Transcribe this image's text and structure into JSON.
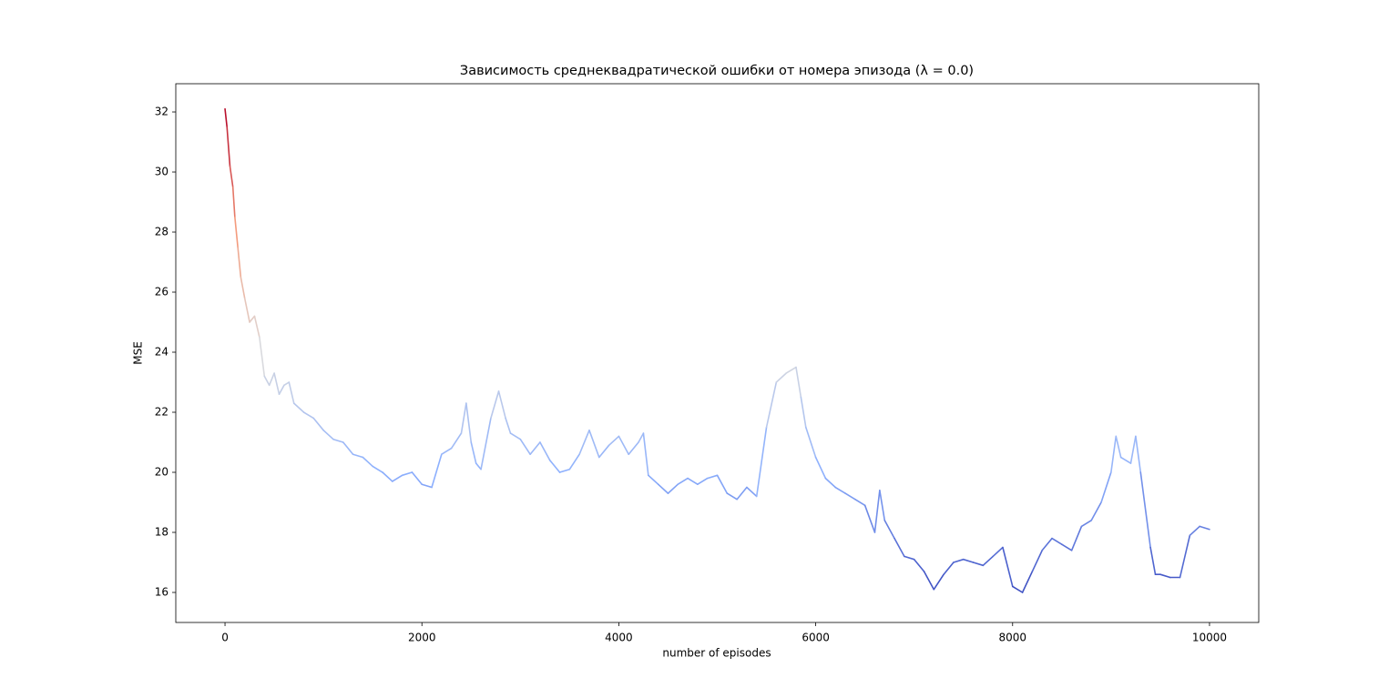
{
  "chart_data": {
    "type": "line",
    "title": "Зависимость среднеквадратической ошибки от номера эпизода (λ = 0.0)",
    "x_label": "number of episodes",
    "y_label": "MSE",
    "xlim": [
      -500,
      10500
    ],
    "ylim": [
      15.0,
      32.94
    ],
    "xticks": [
      0,
      2000,
      4000,
      6000,
      8000,
      10000
    ],
    "yticks": [
      16,
      18,
      20,
      22,
      24,
      26,
      28,
      30,
      32
    ],
    "colormap": [
      "#3b4cc0",
      "#8db0fe",
      "#dddcdc",
      "#f49a7b",
      "#b40426"
    ],
    "x": [
      0,
      20,
      50,
      80,
      100,
      130,
      160,
      200,
      250,
      300,
      350,
      400,
      450,
      500,
      550,
      600,
      650,
      700,
      800,
      900,
      1000,
      1100,
      1200,
      1300,
      1400,
      1500,
      1600,
      1700,
      1800,
      1900,
      2000,
      2100,
      2200,
      2300,
      2400,
      2450,
      2500,
      2550,
      2600,
      2700,
      2780,
      2850,
      2900,
      3000,
      3100,
      3200,
      3300,
      3400,
      3500,
      3600,
      3700,
      3800,
      3900,
      4000,
      4100,
      4200,
      4250,
      4300,
      4400,
      4500,
      4600,
      4700,
      4800,
      4900,
      5000,
      5100,
      5200,
      5300,
      5400,
      5500,
      5600,
      5700,
      5800,
      5850,
      5900,
      6000,
      6100,
      6200,
      6300,
      6400,
      6500,
      6600,
      6650,
      6700,
      6800,
      6900,
      7000,
      7100,
      7200,
      7300,
      7400,
      7500,
      7600,
      7700,
      7800,
      7900,
      8000,
      8100,
      8200,
      8300,
      8400,
      8500,
      8600,
      8700,
      8800,
      8900,
      9000,
      9050,
      9100,
      9200,
      9250,
      9300,
      9400,
      9450,
      9500,
      9600,
      9700,
      9800,
      9900,
      10000
    ],
    "series": [
      {
        "values": [
          32.1,
          31.5,
          30.2,
          29.5,
          28.5,
          27.5,
          26.5,
          25.8,
          25.0,
          25.2,
          24.5,
          23.2,
          22.9,
          23.3,
          22.6,
          22.9,
          23.0,
          22.3,
          22.0,
          21.8,
          21.4,
          21.1,
          21.0,
          20.6,
          20.5,
          20.2,
          20.0,
          19.7,
          19.9,
          20.0,
          19.6,
          19.5,
          20.6,
          20.8,
          21.3,
          22.3,
          21.0,
          20.3,
          20.1,
          21.8,
          22.7,
          21.8,
          21.3,
          21.1,
          20.6,
          21.0,
          20.4,
          20.0,
          20.1,
          20.6,
          21.4,
          20.5,
          20.9,
          21.2,
          20.6,
          21.0,
          21.3,
          19.9,
          19.6,
          19.3,
          19.6,
          19.8,
          19.6,
          19.8,
          19.9,
          19.3,
          19.1,
          19.5,
          19.2,
          21.5,
          23.0,
          23.3,
          23.5,
          22.5,
          21.5,
          20.5,
          19.8,
          19.5,
          19.3,
          19.1,
          18.9,
          18.0,
          19.4,
          18.4,
          17.8,
          17.2,
          17.1,
          16.7,
          16.1,
          16.6,
          17.0,
          17.1,
          17.0,
          16.9,
          17.2,
          17.5,
          16.2,
          16.0,
          16.7,
          17.4,
          17.8,
          17.6,
          17.4,
          18.2,
          18.4,
          19.0,
          20.0,
          21.2,
          20.5,
          20.3,
          21.2,
          20.0,
          17.5,
          16.6,
          16.6,
          16.5,
          16.5,
          17.9,
          18.2,
          18.1
        ]
      }
    ]
  }
}
